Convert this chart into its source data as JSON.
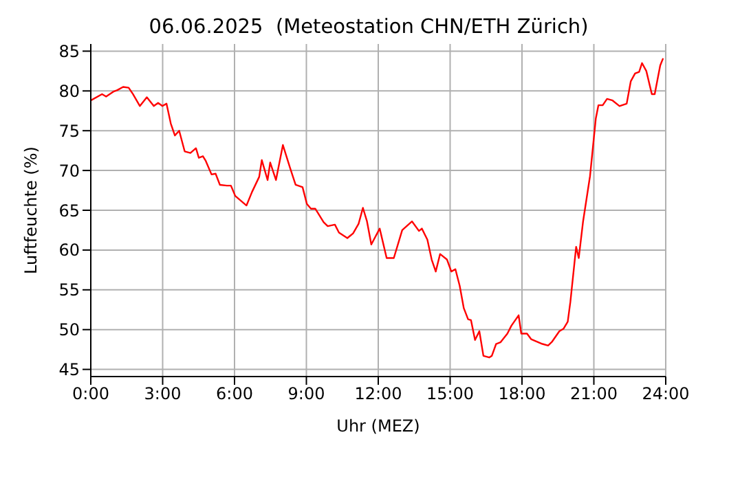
{
  "chart_data": {
    "type": "line",
    "title": "06.06.2025  (Meteostation CHN/ETH Zürich)",
    "xlabel": "Uhr (MEZ)",
    "ylabel": "Luftfeuchte (%)",
    "x": [
      0,
      0.47,
      0.64,
      0.94,
      1.11,
      1.35,
      1.58,
      1.76,
      2.05,
      2.34,
      2.63,
      2.81,
      2.99,
      3.16,
      3.34,
      3.51,
      3.69,
      3.92,
      4.16,
      4.39,
      4.51,
      4.68,
      4.8,
      5.04,
      5.21,
      5.39,
      5.68,
      5.85,
      6.03,
      6.5,
      6.73,
      7.03,
      7.14,
      7.38,
      7.49,
      7.73,
      8.02,
      8.31,
      8.55,
      8.84,
      9.02,
      9.19,
      9.37,
      9.72,
      9.89,
      10.19,
      10.36,
      10.71,
      10.95,
      11.18,
      11.36,
      11.53,
      11.71,
      12.06,
      12.35,
      12.65,
      13.0,
      13.41,
      13.7,
      13.82,
      14.05,
      14.23,
      14.4,
      14.58,
      14.87,
      15.05,
      15.22,
      15.4,
      15.57,
      15.75,
      15.87,
      16.04,
      16.22,
      16.39,
      16.63,
      16.74,
      16.92,
      17.1,
      17.39,
      17.56,
      17.86,
      17.97,
      18.21,
      18.38,
      18.85,
      19.09,
      19.26,
      19.56,
      19.73,
      19.91,
      20.02,
      20.26,
      20.37,
      20.55,
      20.84,
      21.08,
      21.19,
      21.37,
      21.55,
      21.78,
      22.07,
      22.37,
      22.54,
      22.72,
      22.89,
      23.01,
      23.19,
      23.42,
      23.54,
      23.77,
      23.89
    ],
    "series": [
      {
        "color": "#ff0000",
        "values": [
          78.8,
          79.6,
          79.3,
          79.9,
          80.1,
          80.5,
          80.4,
          79.6,
          78.1,
          79.2,
          78.1,
          78.5,
          78.1,
          78.4,
          75.9,
          74.4,
          75.0,
          72.4,
          72.2,
          72.8,
          71.6,
          71.8,
          71.2,
          69.5,
          69.6,
          68.2,
          68.1,
          68.1,
          66.8,
          65.6,
          67.3,
          69.2,
          71.3,
          68.8,
          71.0,
          68.8,
          73.2,
          70.4,
          68.2,
          67.9,
          65.8,
          65.2,
          65.2,
          63.5,
          63.0,
          63.2,
          62.2,
          61.5,
          62.1,
          63.3,
          65.3,
          63.6,
          60.7,
          62.7,
          59.0,
          59.0,
          62.5,
          63.6,
          62.4,
          62.7,
          61.3,
          58.8,
          57.3,
          59.5,
          58.8,
          57.3,
          57.6,
          55.5,
          52.7,
          51.3,
          51.2,
          48.7,
          49.8,
          46.7,
          46.5,
          46.7,
          48.2,
          48.4,
          49.5,
          50.5,
          51.8,
          49.5,
          49.5,
          48.8,
          48.2,
          48.0,
          48.5,
          49.8,
          50.1,
          51.0,
          53.5,
          60.4,
          59.0,
          63.6,
          69.3,
          76.5,
          78.2,
          78.2,
          79.0,
          78.8,
          78.1,
          78.4,
          81.2,
          82.2,
          82.4,
          83.5,
          82.5,
          79.6,
          79.6,
          83.2,
          84.1
        ]
      }
    ],
    "xlim": [
      0,
      24
    ],
    "xticks": [
      {
        "value": 0,
        "label": "0:00"
      },
      {
        "value": 3,
        "label": "3:00"
      },
      {
        "value": 6,
        "label": "6:00"
      },
      {
        "value": 9,
        "label": "9:00"
      },
      {
        "value": 12,
        "label": "12:00"
      },
      {
        "value": 15,
        "label": "15:00"
      },
      {
        "value": 18,
        "label": "18:00"
      },
      {
        "value": 21,
        "label": "21:00"
      },
      {
        "value": 24,
        "label": "24:00"
      }
    ],
    "ylim": [
      44.1,
      85.9
    ],
    "yticks": [
      45,
      50,
      55,
      60,
      65,
      70,
      75,
      80,
      85
    ],
    "grid": true,
    "legend": false,
    "marker": "none",
    "line_style": "solid"
  }
}
